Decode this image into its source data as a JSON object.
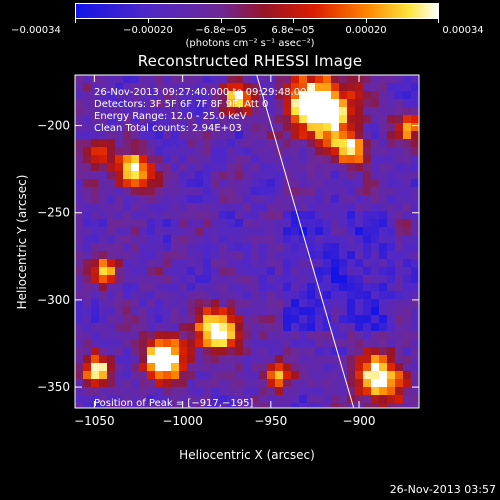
{
  "colorbar": {
    "tick_labels": [
      "−0.00034",
      "−0.00020",
      "−6.8e−05",
      "6.8e−05",
      "0.00020",
      "0.00034"
    ],
    "unit_label": "(photons cm⁻² s⁻¹ asec⁻²)"
  },
  "chart_data": {
    "type": "heatmap",
    "title": "Reconstructed RHESSI Image",
    "xlabel": "Heliocentric X (arcsec)",
    "ylabel": "Heliocentric Y (arcsec)",
    "xlim": [
      -1061,
      -866
    ],
    "ylim": [
      -362,
      -171
    ],
    "xticks": [
      -1050,
      -1000,
      -950,
      -900
    ],
    "yticks": [
      -350,
      -300,
      -250,
      -200
    ],
    "xtick_labels": [
      "−1050",
      "−1000",
      "−950",
      "−900"
    ],
    "ytick_labels": [
      "−350",
      "−300",
      "−250",
      "−200"
    ],
    "colorbar_range": [
      -0.00034,
      0.00034
    ],
    "colormap": "blue-purple-red-yellow-white",
    "limb_line": [
      [
        -958,
        -171
      ],
      [
        -903,
        -362
      ]
    ],
    "peak": {
      "x": -917,
      "y": -195
    },
    "bright_sources": [
      {
        "x": -922,
        "y": -190,
        "r": 18,
        "intensity": 1.0
      },
      {
        "x": -905,
        "y": -214,
        "r": 9,
        "intensity": 0.7
      },
      {
        "x": -1028,
        "y": -226,
        "r": 10,
        "intensity": 0.8
      },
      {
        "x": -980,
        "y": -317,
        "r": 12,
        "intensity": 0.85
      },
      {
        "x": -1010,
        "y": -334,
        "r": 12,
        "intensity": 0.9
      },
      {
        "x": -1043,
        "y": -283,
        "r": 8,
        "intensity": 0.55
      },
      {
        "x": -888,
        "y": -345,
        "r": 14,
        "intensity": 0.75
      },
      {
        "x": -1050,
        "y": -215,
        "r": 8,
        "intensity": 0.5
      },
      {
        "x": -968,
        "y": -184,
        "r": 9,
        "intensity": 0.6
      },
      {
        "x": -946,
        "y": -342,
        "r": 9,
        "intensity": 0.55
      },
      {
        "x": -1048,
        "y": -340,
        "r": 9,
        "intensity": 0.6
      },
      {
        "x": -872,
        "y": -200,
        "r": 8,
        "intensity": 0.55
      }
    ],
    "annotations": [
      "26‑Nov‑2013 09:27:40.000 to 09:29:48.000",
      "Detectors: 3F 5F 6F 7F 8F 9F, Att 0",
      "Energy Range: 12.0 ‑ 25.0 keV",
      "Clean     Total counts: 2.94E+03"
    ],
    "peak_label": "Position of Peak = [−917,−195]"
  },
  "timestamp": "26-Nov-2013 03:57"
}
